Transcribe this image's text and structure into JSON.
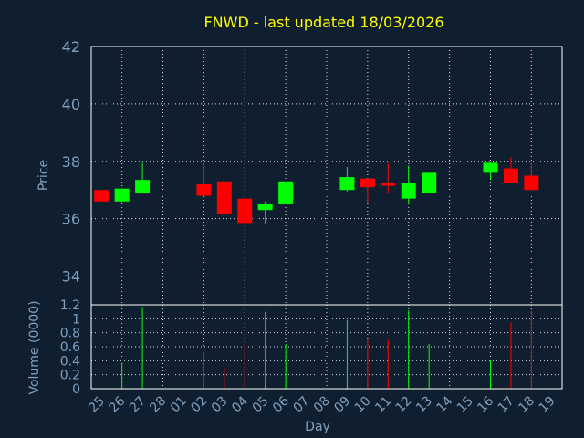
{
  "chart_data": {
    "type": "candlestick",
    "title": "FNWD - last updated 18/03/2026",
    "xlabel": "Day",
    "ylabel_price": "Price",
    "ylabel_volume": "Volume (0000)",
    "price_ylim": [
      33,
      42
    ],
    "price_ticks": [
      "34",
      "36",
      "38",
      "40",
      "42"
    ],
    "volume_ylim": [
      0,
      1.2
    ],
    "volume_ticks": [
      "0",
      "0.2",
      "0.4",
      "0.6",
      "0.8",
      "1",
      "1.2"
    ],
    "grid": true,
    "up_color": "#00ff00",
    "down_color": "#ff0000",
    "x_labels": [
      "25",
      "26",
      "27",
      "28",
      "01",
      "02",
      "03",
      "04",
      "05",
      "06",
      "07",
      "08",
      "09",
      "10",
      "11",
      "12",
      "13",
      "14",
      "15",
      "16",
      "17",
      "18",
      "19"
    ],
    "candles": [
      {
        "slot": 0,
        "open": 37.0,
        "high": 37.0,
        "low": 36.6,
        "close": 36.6,
        "volume": 0.0
      },
      {
        "slot": 1,
        "open": 36.6,
        "high": 37.05,
        "low": 36.6,
        "close": 37.05,
        "volume": 0.37
      },
      {
        "slot": 2,
        "open": 36.9,
        "high": 37.95,
        "low": 36.9,
        "close": 37.35,
        "volume": 1.17
      },
      {
        "slot": 5,
        "open": 37.2,
        "high": 37.95,
        "low": 36.8,
        "close": 36.8,
        "volume": 0.52
      },
      {
        "slot": 6,
        "open": 37.3,
        "high": 37.3,
        "low": 36.15,
        "close": 36.15,
        "volume": 0.3
      },
      {
        "slot": 7,
        "open": 36.7,
        "high": 36.7,
        "low": 35.8,
        "close": 35.85,
        "volume": 0.63
      },
      {
        "slot": 8,
        "open": 36.3,
        "high": 36.6,
        "low": 35.8,
        "close": 36.5,
        "volume": 1.1
      },
      {
        "slot": 9,
        "open": 36.5,
        "high": 37.3,
        "low": 36.5,
        "close": 37.3,
        "volume": 0.64
      },
      {
        "slot": 12,
        "open": 37.0,
        "high": 37.8,
        "low": 36.95,
        "close": 37.45,
        "volume": 0.98
      },
      {
        "slot": 13,
        "open": 37.4,
        "high": 37.4,
        "low": 36.55,
        "close": 37.1,
        "volume": 0.7
      },
      {
        "slot": 14,
        "open": 37.25,
        "high": 37.95,
        "low": 36.9,
        "close": 37.15,
        "volume": 0.7
      },
      {
        "slot": 15,
        "open": 36.7,
        "high": 37.85,
        "low": 36.5,
        "close": 37.25,
        "volume": 1.12
      },
      {
        "slot": 16,
        "open": 36.9,
        "high": 37.6,
        "low": 36.9,
        "close": 37.6,
        "volume": 0.64
      },
      {
        "slot": 19,
        "open": 37.6,
        "high": 37.95,
        "low": 37.35,
        "close": 37.95,
        "volume": 0.42
      },
      {
        "slot": 20,
        "open": 37.75,
        "high": 38.15,
        "low": 37.25,
        "close": 37.25,
        "volume": 0.95
      },
      {
        "slot": 21,
        "open": 37.5,
        "high": 37.95,
        "low": 37.0,
        "close": 37.0,
        "volume": 1.12
      }
    ]
  }
}
